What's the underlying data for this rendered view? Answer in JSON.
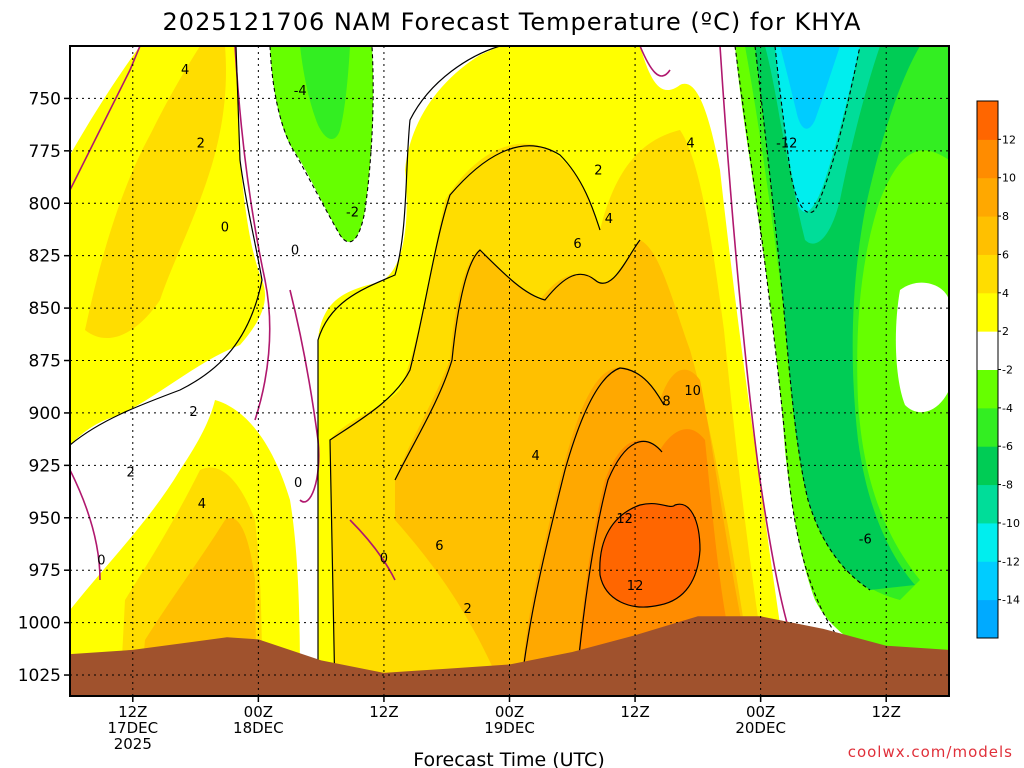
{
  "header": {
    "title": "2025121706 NAM Forecast Temperature (ºC) for KHYA"
  },
  "footer": {
    "credit": "coolwx.com/models"
  },
  "colors": {
    "terrain": "#a0522d",
    "zero_contour": "#b0186e",
    "band_neg14": "#00aaff",
    "band_neg12": "#00ccff",
    "band_neg10": "#00eeee",
    "band_neg8": "#00dd99",
    "band_neg6": "#00cc55",
    "band_neg4": "#33ee22",
    "band_neg2": "#66ff00",
    "band_zero": "#ffffff",
    "band_2": "#ffff00",
    "band_4": "#ffdd00",
    "band_6": "#ffc000",
    "band_8": "#ffa800",
    "band_10": "#ff8c00",
    "band_12": "#ff6600"
  },
  "chart_data": {
    "type": "contour",
    "title": "2025121706 NAM Forecast Temperature (ºC) for KHYA",
    "xlabel": "Forecast Time (UTC)",
    "ylabel": "",
    "x_unit": "forecast hour",
    "xlim": [
      0,
      84
    ],
    "ylim_hpa": [
      725,
      1035
    ],
    "yticks": [
      750,
      775,
      800,
      825,
      850,
      875,
      900,
      925,
      950,
      975,
      1000,
      1025
    ],
    "xticks": [
      {
        "hour": 6,
        "line1": "12Z",
        "line2": "17DEC",
        "line3": "2025"
      },
      {
        "hour": 18,
        "line1": "00Z",
        "line2": "18DEC",
        "line3": ""
      },
      {
        "hour": 30,
        "line1": "12Z",
        "line2": "",
        "line3": ""
      },
      {
        "hour": 42,
        "line1": "00Z",
        "line2": "19DEC",
        "line3": ""
      },
      {
        "hour": 54,
        "line1": "12Z",
        "line2": "",
        "line3": ""
      },
      {
        "hour": 66,
        "line1": "00Z",
        "line2": "20DEC",
        "line3": ""
      },
      {
        "hour": 78,
        "line1": "12Z",
        "line2": "",
        "line3": ""
      }
    ],
    "colorbar": {
      "levels": [
        -14,
        -12,
        -10,
        -8,
        -6,
        -4,
        -2,
        2,
        4,
        6,
        8,
        10,
        12
      ],
      "tick_labels": [
        "-14",
        "-12",
        "-10",
        "-8",
        "-6",
        "-4",
        "-2",
        "2",
        "4",
        "6",
        "8",
        "10",
        "12"
      ]
    },
    "contour_labels": [
      {
        "value": "4",
        "hour": 11.0,
        "hpa": 736
      },
      {
        "value": "2",
        "hour": 12.5,
        "hpa": 771
      },
      {
        "value": "0",
        "hour": 14.8,
        "hpa": 811
      },
      {
        "value": "-4",
        "hour": 22.0,
        "hpa": 746
      },
      {
        "value": "-2",
        "hour": 27.0,
        "hpa": 804
      },
      {
        "value": "0",
        "hour": 21.5,
        "hpa": 822
      },
      {
        "value": "2",
        "hour": 11.8,
        "hpa": 899
      },
      {
        "value": "4",
        "hour": 12.6,
        "hpa": 943
      },
      {
        "value": "2",
        "hour": 5.8,
        "hpa": 928
      },
      {
        "value": "0",
        "hour": 3.0,
        "hpa": 970
      },
      {
        "value": "0",
        "hour": 21.8,
        "hpa": 933
      },
      {
        "value": "0",
        "hour": 30.0,
        "hpa": 969
      },
      {
        "value": "2",
        "hour": 38.0,
        "hpa": 993
      },
      {
        "value": "6",
        "hour": 35.3,
        "hpa": 963
      },
      {
        "value": "4",
        "hour": 44.5,
        "hpa": 920
      },
      {
        "value": "2",
        "hour": 50.5,
        "hpa": 784
      },
      {
        "value": "4",
        "hour": 51.5,
        "hpa": 807
      },
      {
        "value": "6",
        "hour": 48.5,
        "hpa": 819
      },
      {
        "value": "4",
        "hour": 59.3,
        "hpa": 771
      },
      {
        "value": "8",
        "hour": 57.0,
        "hpa": 894
      },
      {
        "value": "10",
        "hour": 59.5,
        "hpa": 889
      },
      {
        "value": "12",
        "hour": 53.0,
        "hpa": 950
      },
      {
        "value": "12",
        "hour": 54.0,
        "hpa": 982
      },
      {
        "value": "-12",
        "hour": 68.5,
        "hpa": 771
      },
      {
        "value": "-6",
        "hour": 76.0,
        "hpa": 960
      }
    ],
    "terrain": {
      "color": "#a0522d",
      "surface_pressure_hpa": [
        [
          0,
          1015
        ],
        [
          6,
          1013
        ],
        [
          12,
          1009
        ],
        [
          15,
          1007
        ],
        [
          18,
          1008
        ],
        [
          24,
          1018
        ],
        [
          30,
          1024
        ],
        [
          33,
          1023
        ],
        [
          36,
          1022
        ],
        [
          42,
          1020
        ],
        [
          48,
          1014
        ],
        [
          54,
          1006
        ],
        [
          60,
          997
        ],
        [
          66,
          997
        ],
        [
          72,
          1003
        ],
        [
          78,
          1011
        ],
        [
          84,
          1013
        ]
      ]
    }
  }
}
